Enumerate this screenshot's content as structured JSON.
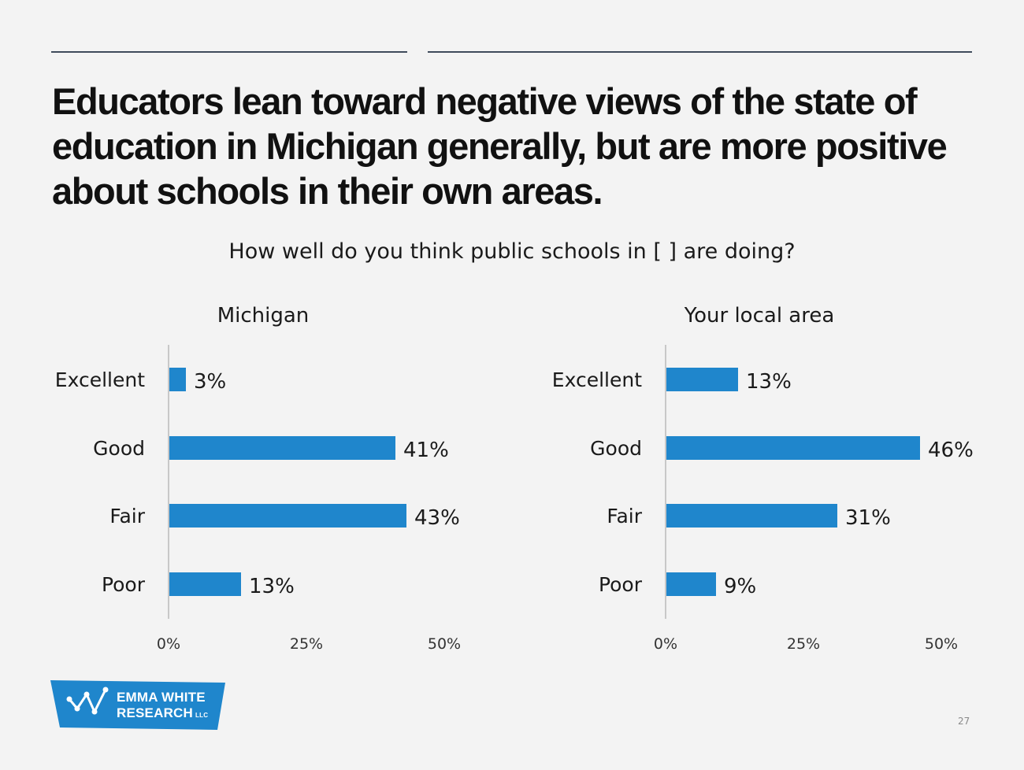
{
  "slide": {
    "title": "Educators lean toward negative views of the state of education in Michigan generally, but are more positive about schools in their own areas.",
    "question": "How well do you think public schools in [ ] are doing?",
    "page_number": "27"
  },
  "logo": {
    "line1": "EMMA WHITE",
    "line2": "RESEARCH",
    "suffix": "LLC"
  },
  "colors": {
    "bar": "#1f86cc",
    "axis": "#c8c8c8",
    "text": "#1a1a1a"
  },
  "chart_data": [
    {
      "type": "bar",
      "orientation": "horizontal",
      "title": "Michigan",
      "categories": [
        "Excellent",
        "Good",
        "Fair",
        "Poor"
      ],
      "values": [
        3,
        41,
        43,
        13
      ],
      "value_labels": [
        "3%",
        "41%",
        "43%",
        "13%"
      ],
      "xlim": [
        0,
        50
      ],
      "xticks": [
        "0%",
        "25%",
        "50%"
      ],
      "grid": false
    },
    {
      "type": "bar",
      "orientation": "horizontal",
      "title": "Your local area",
      "categories": [
        "Excellent",
        "Good",
        "Fair",
        "Poor"
      ],
      "values": [
        13,
        46,
        31,
        9
      ],
      "value_labels": [
        "13%",
        "46%",
        "31%",
        "9%"
      ],
      "xlim": [
        0,
        50
      ],
      "xticks": [
        "0%",
        "25%",
        "50%"
      ],
      "grid": false
    }
  ]
}
